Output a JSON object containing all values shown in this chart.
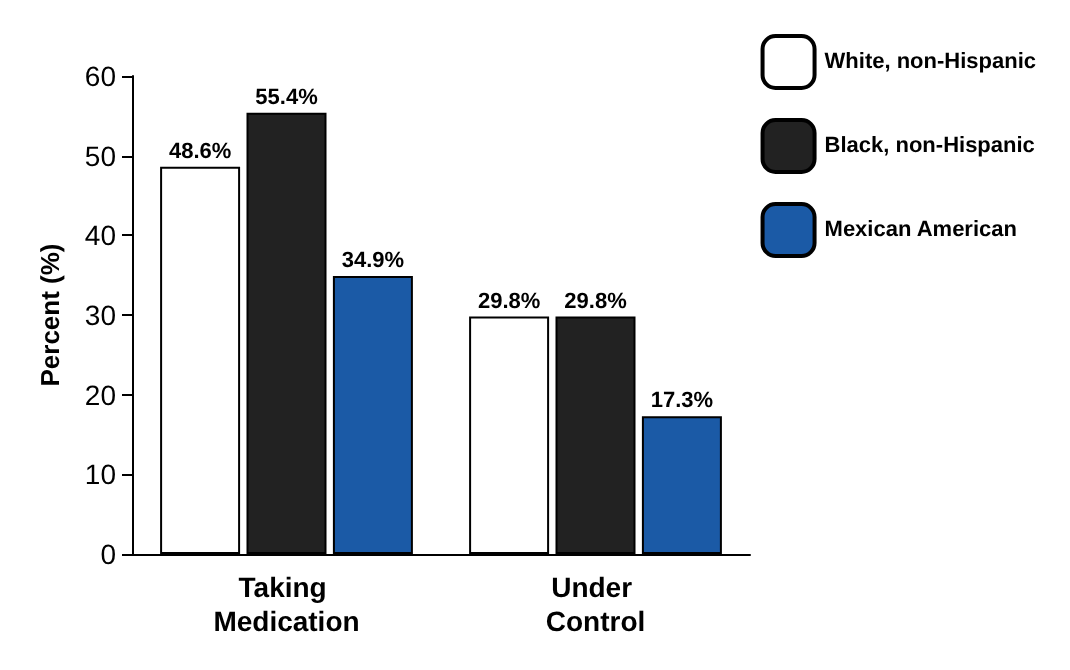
{
  "chart_data": {
    "type": "bar",
    "ylabel": "Percent (%)",
    "categories": [
      "Taking Medication",
      "Under Control"
    ],
    "series": [
      {
        "name": "White, non-Hispanic",
        "color": "#ffffff",
        "values": [
          48.6,
          29.8
        ],
        "value_labels": [
          "48.6%",
          "29.8%"
        ]
      },
      {
        "name": "Black, non-Hispanic",
        "color": "#222222",
        "values": [
          55.4,
          29.8
        ],
        "value_labels": [
          "55.4%",
          "29.8%"
        ]
      },
      {
        "name": "Mexican American",
        "color": "#1b5aa6",
        "values": [
          34.9,
          17.3
        ],
        "value_labels": [
          "34.9%",
          "17.3%"
        ]
      }
    ],
    "ylim": [
      0,
      60
    ],
    "yticks": [
      0,
      10,
      20,
      30,
      40,
      50,
      60
    ],
    "grid": false,
    "legend": "top right"
  }
}
